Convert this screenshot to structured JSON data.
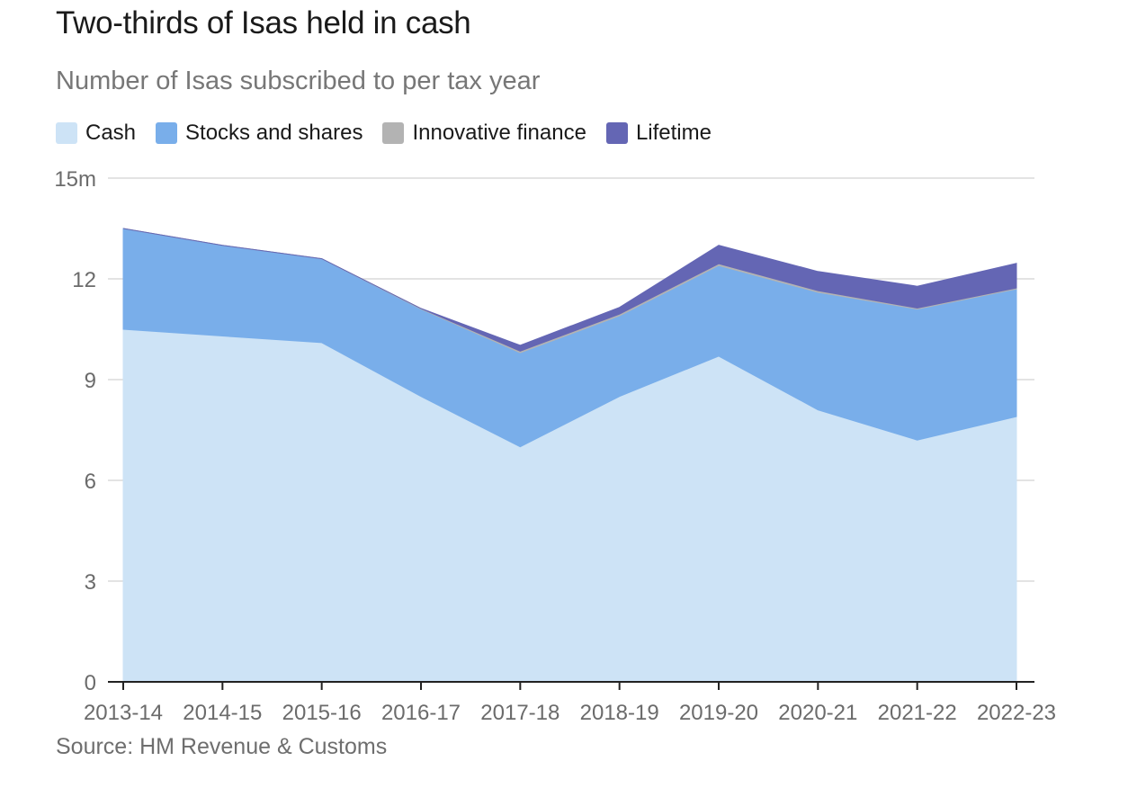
{
  "title": "Two-thirds of Isas held in cash",
  "subtitle": "Number of Isas subscribed to per tax year",
  "source": "Source: HM Revenue & Customs",
  "legend": [
    {
      "label": "Cash",
      "color": "#cde3f6"
    },
    {
      "label": "Stocks and shares",
      "color": "#79aeea"
    },
    {
      "label": "Innovative finance",
      "color": "#b3b3b3"
    },
    {
      "label": "Lifetime",
      "color": "#6466b4"
    }
  ],
  "chart_data": {
    "type": "area",
    "stacked": true,
    "categories": [
      "2013-14",
      "2014-15",
      "2015-16",
      "2016-17",
      "2017-18",
      "2018-19",
      "2019-20",
      "2020-21",
      "2021-22",
      "2022-23"
    ],
    "series": [
      {
        "name": "Cash",
        "color": "#cde3f6",
        "values": [
          10.5,
          10.3,
          10.1,
          8.5,
          7.0,
          8.5,
          9.7,
          8.1,
          7.2,
          7.9
        ]
      },
      {
        "name": "Stocks and shares",
        "color": "#79aeea",
        "values": [
          3.0,
          2.7,
          2.5,
          2.6,
          2.8,
          2.4,
          2.7,
          3.5,
          3.9,
          3.8
        ]
      },
      {
        "name": "Innovative finance",
        "color": "#b3b3b3",
        "values": [
          0.0,
          0.0,
          0.0,
          0.02,
          0.05,
          0.05,
          0.05,
          0.05,
          0.03,
          0.03
        ]
      },
      {
        "name": "Lifetime",
        "color": "#6466b4",
        "values": [
          0.0,
          0.0,
          0.0,
          0.0,
          0.17,
          0.2,
          0.55,
          0.57,
          0.65,
          0.73
        ]
      }
    ],
    "ylim": [
      0,
      15
    ],
    "yticks": [
      0,
      3,
      6,
      9,
      12,
      15
    ],
    "ytick_labels": [
      "0",
      "3",
      "6",
      "9",
      "12",
      "15m"
    ],
    "grid": true,
    "legend_position": "top-left"
  }
}
